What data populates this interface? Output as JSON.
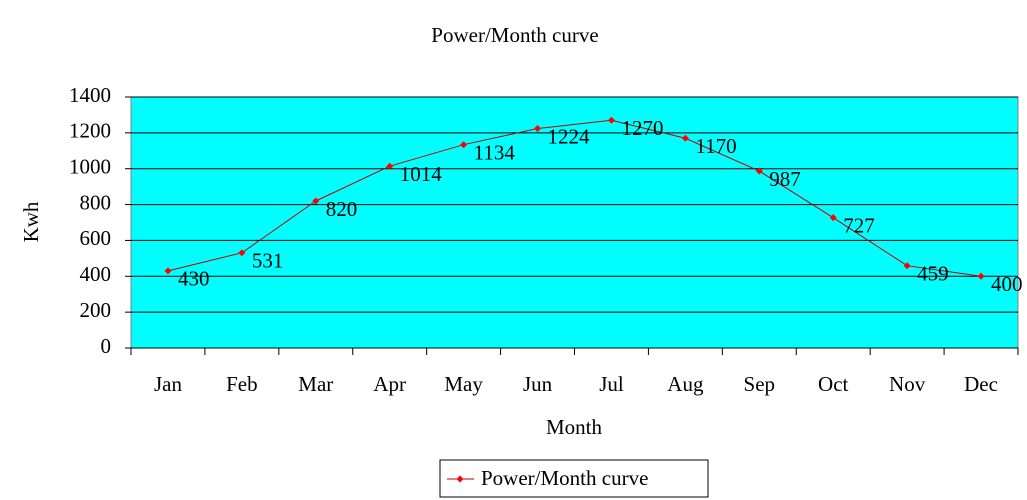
{
  "chart_data": {
    "type": "line",
    "title": "Power/Month curve",
    "x_label": "Month",
    "y_label": "Kwh",
    "categories": [
      "Jan",
      "Feb",
      "Mar",
      "Apr",
      "May",
      "Jun",
      "Jul",
      "Aug",
      "Sep",
      "Oct",
      "Nov",
      "Dec"
    ],
    "series": [
      {
        "name": "Power/Month curve",
        "color": "#ff0000",
        "values": [
          430,
          531,
          820,
          1014,
          1134,
          1224,
          1270,
          1170,
          987,
          727,
          459,
          400
        ]
      }
    ],
    "ylim": [
      0,
      1400
    ],
    "yticks": [
      0,
      200,
      400,
      600,
      800,
      1000,
      1200,
      1400
    ],
    "grid": true,
    "data_labels": true,
    "legend": "bottom"
  }
}
